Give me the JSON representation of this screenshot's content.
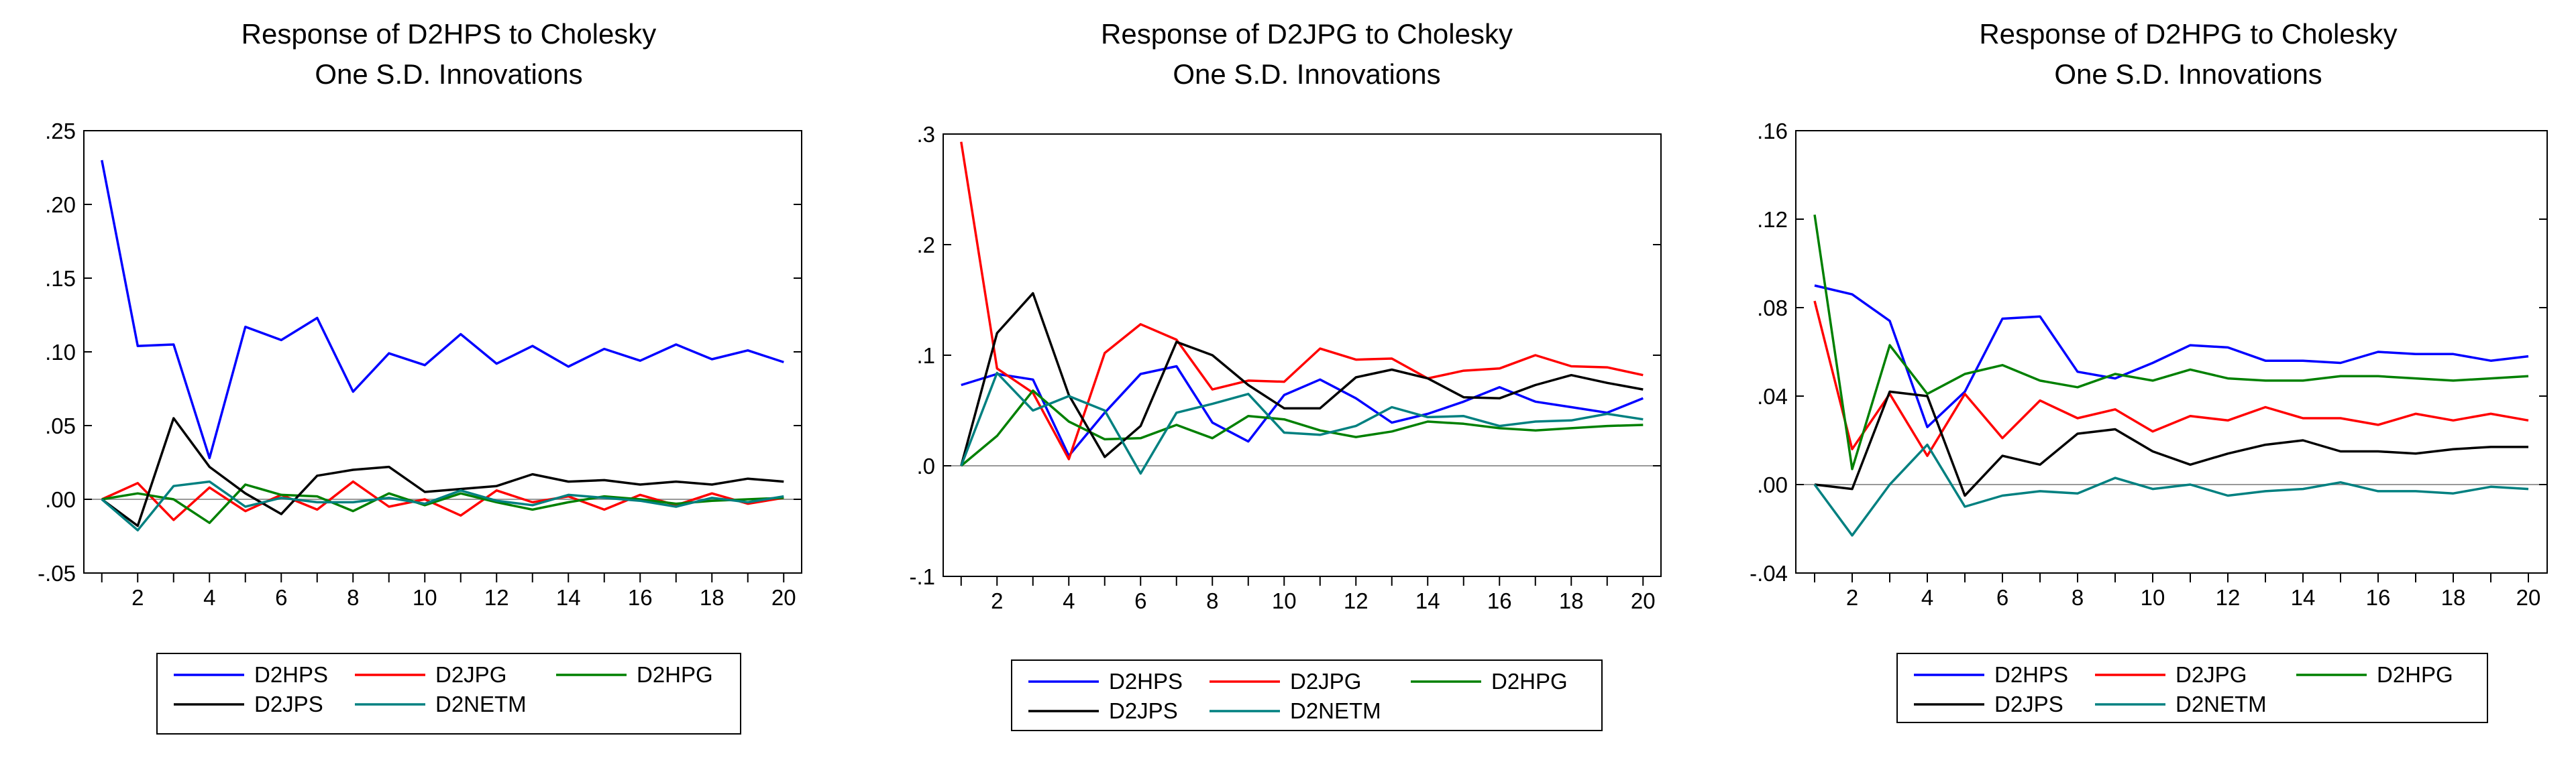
{
  "chart_data": [
    {
      "type": "line",
      "title": "Response of D2HPS to Cholesky",
      "subtitle": "One S.D. Innovations",
      "x": [
        1,
        2,
        3,
        4,
        5,
        6,
        7,
        8,
        9,
        10,
        11,
        12,
        13,
        14,
        15,
        16,
        17,
        18,
        19,
        20
      ],
      "xticks": [
        2,
        4,
        6,
        8,
        10,
        12,
        14,
        16,
        18,
        20
      ],
      "ylim": [
        -0.05,
        0.25
      ],
      "yticks": [
        -0.05,
        0.0,
        0.05,
        0.1,
        0.15,
        0.2,
        0.25
      ],
      "ytick_labels": [
        "-.05",
        ".00",
        ".05",
        ".10",
        ".15",
        ".20",
        ".25"
      ],
      "series": [
        {
          "name": "D2HPS",
          "color": "#0000ff",
          "values": [
            0.23,
            0.104,
            0.105,
            0.028,
            0.117,
            0.108,
            0.123,
            0.073,
            0.099,
            0.091,
            0.112,
            0.092,
            0.104,
            0.09,
            0.102,
            0.094,
            0.105,
            0.095,
            0.101,
            0.093
          ]
        },
        {
          "name": "D2JPG",
          "color": "#ff0000",
          "values": [
            0.0,
            0.011,
            -0.014,
            0.008,
            -0.008,
            0.003,
            -0.007,
            0.012,
            -0.005,
            0.0,
            -0.011,
            0.006,
            -0.002,
            0.002,
            -0.007,
            0.003,
            -0.004,
            0.004,
            -0.003,
            0.001
          ]
        },
        {
          "name": "D2HPG",
          "color": "#008000",
          "values": [
            0.0,
            0.004,
            0.0,
            -0.016,
            0.01,
            0.003,
            0.002,
            -0.008,
            0.004,
            -0.004,
            0.004,
            -0.002,
            -0.007,
            -0.002,
            0.002,
            0.0,
            -0.003,
            -0.001,
            0.0,
            0.001
          ]
        },
        {
          "name": "D2JPS",
          "color": "#000000",
          "values": [
            0.0,
            -0.018,
            0.055,
            0.022,
            0.004,
            -0.01,
            0.016,
            0.02,
            0.022,
            0.005,
            0.007,
            0.009,
            0.017,
            0.012,
            0.013,
            0.01,
            0.012,
            0.01,
            0.014,
            0.012
          ]
        },
        {
          "name": "D2NETM",
          "color": "#008080",
          "values": [
            0.0,
            -0.021,
            0.009,
            0.012,
            -0.005,
            0.001,
            -0.002,
            -0.002,
            0.001,
            -0.003,
            0.006,
            -0.001,
            -0.004,
            0.003,
            0.001,
            -0.001,
            -0.005,
            0.001,
            -0.002,
            0.002
          ]
        }
      ]
    },
    {
      "type": "line",
      "title": "Response of D2JPG to Cholesky",
      "subtitle": "One S.D. Innovations",
      "x": [
        1,
        2,
        3,
        4,
        5,
        6,
        7,
        8,
        9,
        10,
        11,
        12,
        13,
        14,
        15,
        16,
        17,
        18,
        19,
        20
      ],
      "xticks": [
        2,
        4,
        6,
        8,
        10,
        12,
        14,
        16,
        18,
        20
      ],
      "ylim": [
        -0.1,
        0.3
      ],
      "yticks": [
        -0.1,
        0.0,
        0.1,
        0.2,
        0.3
      ],
      "ytick_labels": [
        "-.1",
        ".0",
        ".1",
        ".2",
        ".3"
      ],
      "series": [
        {
          "name": "D2HPS",
          "color": "#0000ff",
          "values": [
            0.073,
            0.083,
            0.078,
            0.009,
            0.048,
            0.083,
            0.09,
            0.039,
            0.022,
            0.064,
            0.078,
            0.061,
            0.039,
            0.047,
            0.058,
            0.071,
            0.058,
            0.053,
            0.048,
            0.061
          ]
        },
        {
          "name": "D2JPG",
          "color": "#ff0000",
          "values": [
            0.293,
            0.088,
            0.066,
            0.006,
            0.102,
            0.128,
            0.114,
            0.069,
            0.077,
            0.076,
            0.106,
            0.096,
            0.097,
            0.079,
            0.086,
            0.088,
            0.1,
            0.09,
            0.089,
            0.082
          ]
        },
        {
          "name": "D2HPG",
          "color": "#008000",
          "values": [
            0.0,
            0.027,
            0.068,
            0.04,
            0.024,
            0.025,
            0.037,
            0.025,
            0.045,
            0.042,
            0.032,
            0.026,
            0.031,
            0.04,
            0.038,
            0.034,
            0.032,
            0.034,
            0.036,
            0.037
          ]
        },
        {
          "name": "D2JPS",
          "color": "#000000",
          "values": [
            0.0,
            0.12,
            0.156,
            0.064,
            0.008,
            0.036,
            0.112,
            0.1,
            0.073,
            0.052,
            0.052,
            0.08,
            0.087,
            0.079,
            0.062,
            0.061,
            0.073,
            0.082,
            0.075,
            0.069
          ]
        },
        {
          "name": "D2NETM",
          "color": "#008080",
          "values": [
            0.0,
            0.084,
            0.05,
            0.063,
            0.05,
            -0.007,
            0.048,
            0.056,
            0.065,
            0.03,
            0.028,
            0.036,
            0.053,
            0.044,
            0.045,
            0.036,
            0.04,
            0.041,
            0.047,
            0.042
          ]
        }
      ]
    },
    {
      "type": "line",
      "title": "Response of D2HPG to Cholesky",
      "subtitle": "One S.D. Innovations",
      "x": [
        1,
        2,
        3,
        4,
        5,
        6,
        7,
        8,
        9,
        10,
        11,
        12,
        13,
        14,
        15,
        16,
        17,
        18,
        19,
        20
      ],
      "xticks": [
        2,
        4,
        6,
        8,
        10,
        12,
        14,
        16,
        18,
        20
      ],
      "ylim": [
        -0.04,
        0.16
      ],
      "yticks": [
        -0.04,
        0.0,
        0.04,
        0.08,
        0.12,
        0.16
      ],
      "ytick_labels": [
        "-.04",
        ".00",
        ".04",
        ".08",
        ".12",
        ".16"
      ],
      "series": [
        {
          "name": "D2HPS",
          "color": "#0000ff",
          "values": [
            0.09,
            0.086,
            0.074,
            0.026,
            0.042,
            0.075,
            0.076,
            0.051,
            0.048,
            0.055,
            0.063,
            0.062,
            0.056,
            0.056,
            0.055,
            0.06,
            0.059,
            0.059,
            0.056,
            0.058
          ]
        },
        {
          "name": "D2JPG",
          "color": "#ff0000",
          "values": [
            0.083,
            0.016,
            0.041,
            0.013,
            0.041,
            0.021,
            0.038,
            0.03,
            0.034,
            0.024,
            0.031,
            0.029,
            0.035,
            0.03,
            0.03,
            0.027,
            0.032,
            0.029,
            0.032,
            0.029
          ]
        },
        {
          "name": "D2HPG",
          "color": "#008000",
          "values": [
            0.122,
            0.007,
            0.063,
            0.041,
            0.05,
            0.054,
            0.047,
            0.044,
            0.05,
            0.047,
            0.052,
            0.048,
            0.047,
            0.047,
            0.049,
            0.049,
            0.048,
            0.047,
            0.048,
            0.049
          ]
        },
        {
          "name": "D2JPS",
          "color": "#000000",
          "values": [
            0.0,
            -0.002,
            0.042,
            0.04,
            -0.005,
            0.013,
            0.009,
            0.023,
            0.025,
            0.015,
            0.009,
            0.014,
            0.018,
            0.02,
            0.015,
            0.015,
            0.014,
            0.016,
            0.017,
            0.017
          ]
        },
        {
          "name": "D2NETM",
          "color": "#008080",
          "values": [
            0.0,
            -0.023,
            0.0,
            0.018,
            -0.01,
            -0.005,
            -0.003,
            -0.004,
            0.003,
            -0.002,
            0.0,
            -0.005,
            -0.003,
            -0.002,
            0.001,
            -0.003,
            -0.003,
            -0.004,
            -0.001,
            -0.002
          ]
        }
      ]
    }
  ]
}
